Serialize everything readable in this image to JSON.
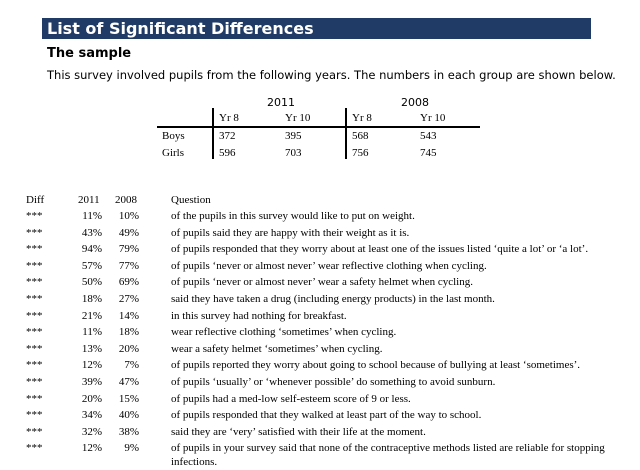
{
  "page": {
    "title": "List of Significant Differences",
    "section_heading": "The sample",
    "intro": "This survey involved pupils from the following years. The numbers in each group are shown below."
  },
  "sample_table": {
    "years": [
      "2011",
      "2008"
    ],
    "sub_headers": [
      "Yr 8",
      "Yr 10",
      "Yr 8",
      "Yr 10"
    ],
    "rows": [
      {
        "label": "Boys",
        "values": [
          "372",
          "395",
          "568",
          "543"
        ]
      },
      {
        "label": "Girls",
        "values": [
          "596",
          "703",
          "756",
          "745"
        ]
      }
    ]
  },
  "diff_table": {
    "headers": {
      "diff": "Diff",
      "y2011": "2011",
      "y2008": "2008",
      "question": "Question"
    },
    "rows": [
      {
        "diff": "***",
        "y2011": "11%",
        "y2008": "10%",
        "question": "of the pupils in this survey would like to put on weight."
      },
      {
        "diff": "***",
        "y2011": "43%",
        "y2008": "49%",
        "question": "of pupils said they are happy with their weight as it is."
      },
      {
        "diff": "***",
        "y2011": "94%",
        "y2008": "79%",
        "question": "of pupils responded that they worry about at least one of the issues listed ‘quite a lot’ or ‘a lot’."
      },
      {
        "diff": "***",
        "y2011": "57%",
        "y2008": "77%",
        "question": "of pupils ‘never or almost never’ wear reflective clothing when cycling."
      },
      {
        "diff": "***",
        "y2011": "50%",
        "y2008": "69%",
        "question": "of pupils ‘never or almost never’ wear a safety helmet when cycling."
      },
      {
        "diff": "***",
        "y2011": "18%",
        "y2008": "27%",
        "question": "said they have taken a drug (including energy products) in the last month."
      },
      {
        "diff": "***",
        "y2011": "21%",
        "y2008": "14%",
        "question": "in this survey had nothing for breakfast."
      },
      {
        "diff": "***",
        "y2011": "11%",
        "y2008": "18%",
        "question": "wear reflective clothing ‘sometimes’ when cycling."
      },
      {
        "diff": "***",
        "y2011": "13%",
        "y2008": "20%",
        "question": "wear a safety helmet ‘sometimes’ when cycling."
      },
      {
        "diff": "***",
        "y2011": "12%",
        "y2008": "7%",
        "question": "of pupils reported they worry about going to school because of bullying at least ‘sometimes’."
      },
      {
        "diff": "***",
        "y2011": "39%",
        "y2008": "47%",
        "question": "of pupils ‘usually’ or ‘whenever possible’ do something to avoid sunburn."
      },
      {
        "diff": "***",
        "y2011": "20%",
        "y2008": "15%",
        "question": "of pupils had a med-low self-esteem score of 9 or less."
      },
      {
        "diff": "***",
        "y2011": "34%",
        "y2008": "40%",
        "question": "of pupils responded that they walked at least part of the way to school."
      },
      {
        "diff": "***",
        "y2011": "32%",
        "y2008": "38%",
        "question": "said they are ‘very’ satisfied with their life at the moment."
      },
      {
        "diff": "***",
        "y2011": "12%",
        "y2008": "9%",
        "question": "of pupils in your survey said that none of the contraceptive methods listed are reliable for stopping infections."
      }
    ]
  }
}
